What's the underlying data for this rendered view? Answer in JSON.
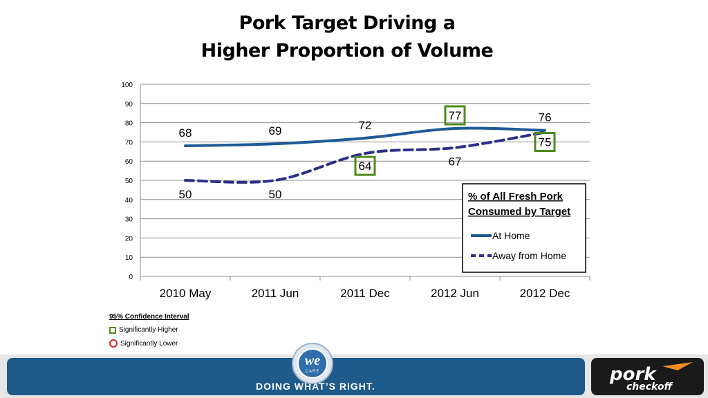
{
  "slide": {
    "title_line1": "Pork Target Driving a",
    "title_line2": "Higher Proportion of Volume"
  },
  "chart_data": {
    "type": "line",
    "categories": [
      "2010 May",
      "2011 Jun",
      "2011 Dec",
      "2012 Jun",
      "2012 Dec"
    ],
    "ylim": [
      0,
      100
    ],
    "yticks": [
      0,
      10,
      20,
      30,
      40,
      50,
      60,
      70,
      80,
      90,
      100
    ],
    "grid": true,
    "legend": {
      "title_line1": "% of All Fresh Pork",
      "title_line2": "Consumed by Target",
      "placement": "bottom-right"
    },
    "series": [
      {
        "name": "At Home",
        "values": [
          68,
          69,
          72,
          77,
          76
        ],
        "labels": [
          "68",
          "69",
          "72",
          "77",
          "76"
        ],
        "color": "#1f5a96",
        "style": "solid",
        "highlight": [
          false,
          false,
          false,
          "higher",
          false
        ]
      },
      {
        "name": "Away from Home",
        "values": [
          50,
          50,
          64,
          67,
          75
        ],
        "labels": [
          "50",
          "50",
          "64",
          "67",
          "75"
        ],
        "color": "#2e2e8a",
        "style": "dashed",
        "highlight": [
          false,
          false,
          "higher",
          false,
          "higher"
        ]
      }
    ]
  },
  "confidence": {
    "title": "95% Confidence Interval",
    "higher": "Significantly Higher",
    "lower": "Significantly Lower",
    "higher_color": "#4e8a1c",
    "lower_color": "#e02020"
  },
  "footer": {
    "tagline": "DOING WHAT’S RIGHT.",
    "we_logo_text": "we",
    "we_logo_sub": "CARE",
    "pork_logo_main": "pork",
    "pork_logo_sub": "checkoff"
  }
}
